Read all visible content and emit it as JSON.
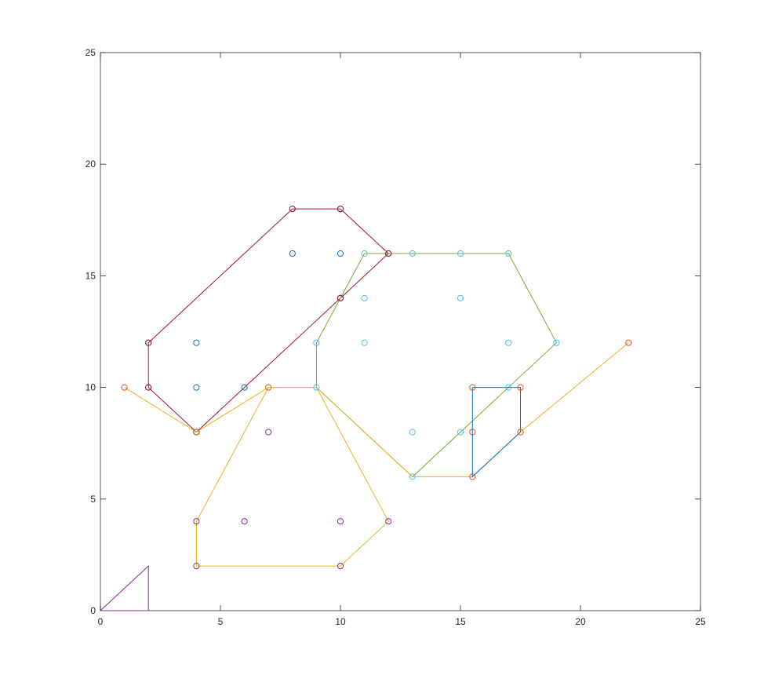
{
  "chart_data": {
    "type": "scatter",
    "title": "",
    "xlabel": "",
    "ylabel": "",
    "xlim": [
      0,
      25
    ],
    "ylim": [
      0,
      25
    ],
    "x_ticks": [
      0,
      5,
      10,
      15,
      20,
      25
    ],
    "y_ticks": [
      0,
      5,
      10,
      15,
      20,
      25
    ],
    "x_tick_labels": [
      "0",
      "5",
      "10",
      "15",
      "20",
      "25"
    ],
    "y_tick_labels": [
      "0",
      "5",
      "10",
      "15",
      "20",
      "25"
    ],
    "grid": false,
    "box": true,
    "polygons": [
      {
        "color": "#A2142F",
        "points": [
          [
            8,
            18
          ],
          [
            10,
            18
          ],
          [
            12,
            16
          ],
          [
            4,
            8
          ],
          [
            2,
            10
          ],
          [
            2,
            12
          ],
          [
            8,
            18
          ]
        ]
      },
      {
        "color": "#77AC30",
        "points": [
          [
            11,
            16
          ],
          [
            17,
            16
          ],
          [
            19,
            12
          ],
          [
            13,
            6
          ],
          [
            9,
            10
          ],
          [
            9,
            12
          ],
          [
            11,
            16
          ]
        ]
      },
      {
        "color": "#EDB120",
        "points": [
          [
            1,
            10
          ],
          [
            4,
            8
          ],
          [
            7,
            10
          ],
          [
            9,
            10
          ],
          [
            13,
            6
          ],
          [
            15.5,
            6
          ],
          [
            17.5,
            8
          ],
          [
            22,
            12
          ]
        ]
      },
      {
        "color": "#EDB120",
        "points": [
          [
            7,
            10
          ],
          [
            4,
            4
          ],
          [
            4,
            2
          ],
          [
            10,
            2
          ],
          [
            12,
            4
          ],
          [
            9,
            10
          ]
        ]
      },
      {
        "color": "#0072BD",
        "points": [
          [
            15.5,
            10
          ],
          [
            17.5,
            10
          ],
          [
            17.5,
            8
          ],
          [
            15.5,
            6
          ],
          [
            15.5,
            10
          ]
        ]
      },
      {
        "color": "#7E2F8E",
        "points": [
          [
            0,
            0
          ],
          [
            2,
            2
          ],
          [
            2,
            0
          ],
          [
            0,
            0
          ]
        ]
      }
    ],
    "series": [
      {
        "color": "#0072BD",
        "points": [
          [
            8,
            18
          ],
          [
            10,
            18
          ],
          [
            8,
            16
          ],
          [
            10,
            16
          ],
          [
            12,
            16
          ],
          [
            10,
            14
          ],
          [
            2,
            12
          ],
          [
            4,
            12
          ],
          [
            2,
            10
          ],
          [
            4,
            10
          ],
          [
            6,
            10
          ],
          [
            4,
            8
          ]
        ]
      },
      {
        "color": "#A2142F",
        "points": [
          [
            8,
            18
          ],
          [
            10,
            18
          ],
          [
            12,
            16
          ],
          [
            10,
            14
          ],
          [
            2,
            12
          ],
          [
            2,
            10
          ],
          [
            4,
            8
          ]
        ]
      },
      {
        "color": "#4DBEEE",
        "points": [
          [
            11,
            16
          ],
          [
            13,
            16
          ],
          [
            15,
            16
          ],
          [
            17,
            16
          ],
          [
            11,
            14
          ],
          [
            15,
            14
          ],
          [
            9,
            12
          ],
          [
            11,
            12
          ],
          [
            17,
            12
          ],
          [
            19,
            12
          ],
          [
            9,
            10
          ],
          [
            17,
            10
          ],
          [
            13,
            8
          ],
          [
            15,
            8
          ],
          [
            13,
            6
          ],
          [
            4,
            8
          ]
        ]
      },
      {
        "color": "#D95319",
        "points": [
          [
            1,
            10
          ],
          [
            7,
            10
          ],
          [
            15.5,
            10
          ],
          [
            17.5,
            10
          ],
          [
            15.5,
            8
          ],
          [
            17.5,
            8
          ],
          [
            15.5,
            6
          ],
          [
            22,
            12
          ],
          [
            4,
            8
          ]
        ]
      },
      {
        "color": "#7E2F8E",
        "points": [
          [
            7,
            8
          ],
          [
            4,
            4
          ],
          [
            6,
            4
          ],
          [
            10,
            4
          ],
          [
            12,
            4
          ],
          [
            4,
            2
          ],
          [
            10,
            2
          ]
        ]
      }
    ]
  }
}
